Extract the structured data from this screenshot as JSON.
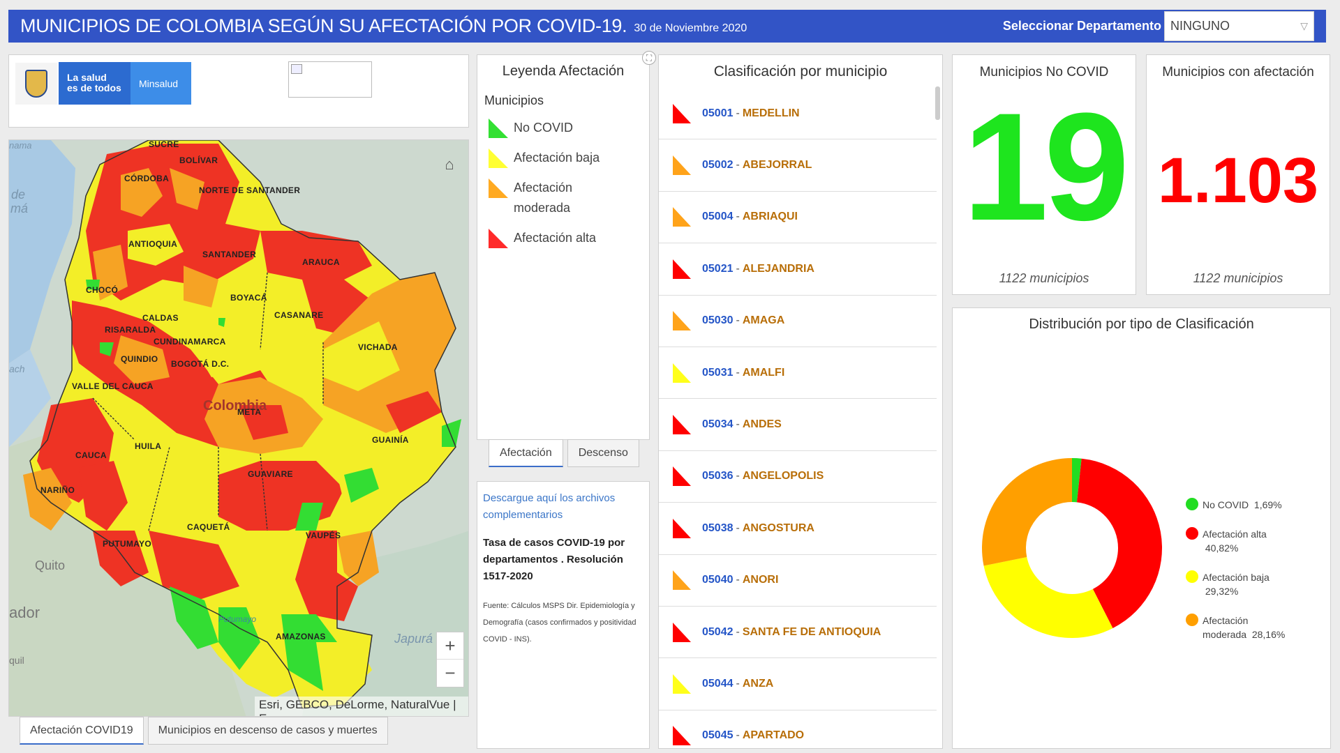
{
  "header": {
    "title": "MUNICIPIOS DE COLOMBIA SEGÚN SU AFECTACIÓN POR COVID-19.",
    "date": "30 de Noviembre 2020",
    "dept_label": "Seleccionar Departamento",
    "dept_value": "NINGUNO"
  },
  "logos": {
    "minsalud_slogan_1": "La salud",
    "minsalud_slogan_2": "es de todos",
    "minsalud_name": "Minsalud"
  },
  "map": {
    "attribution": "Esri, GEBCO, DeLorme, NaturalVue | E...",
    "labels": [
      {
        "id": "sucre",
        "text": "SUCRE"
      },
      {
        "id": "bolivar",
        "text": "BOLÍVAR"
      },
      {
        "id": "cordoba",
        "text": "CÓRDOBA"
      },
      {
        "id": "norte-santander",
        "text": "NORTE DE SANTANDER"
      },
      {
        "id": "antioquia",
        "text": "ANTIOQUIA"
      },
      {
        "id": "santander",
        "text": "SANTANDER"
      },
      {
        "id": "arauca",
        "text": "ARAUCA"
      },
      {
        "id": "choco",
        "text": "CHOCÓ"
      },
      {
        "id": "boyaca",
        "text": "BOYACÁ"
      },
      {
        "id": "caldas",
        "text": "CALDAS"
      },
      {
        "id": "casanare",
        "text": "CASANARE"
      },
      {
        "id": "risaralda",
        "text": "RISARALDA"
      },
      {
        "id": "cundinamarca",
        "text": "CUNDINAMARCA"
      },
      {
        "id": "vichada",
        "text": "VICHADA"
      },
      {
        "id": "quindio",
        "text": "QUINDIO"
      },
      {
        "id": "bogota",
        "text": "BOGOTÁ D.C."
      },
      {
        "id": "valle",
        "text": "VALLE DEL CAUCA"
      },
      {
        "id": "meta",
        "text": "META"
      },
      {
        "id": "guainia",
        "text": "GUAINÍA"
      },
      {
        "id": "huila",
        "text": "HUILA"
      },
      {
        "id": "cauca",
        "text": "CAUCA"
      },
      {
        "id": "guaviare",
        "text": "GUAVIARE"
      },
      {
        "id": "narino",
        "text": "NARIÑO"
      },
      {
        "id": "caqueta",
        "text": "CAQUETÁ"
      },
      {
        "id": "vaupes",
        "text": "VAUPÉS"
      },
      {
        "id": "putumayo",
        "text": "PUTUMAYO"
      },
      {
        "id": "amazonas",
        "text": "AMAZONAS"
      }
    ],
    "country_label": "Colombia",
    "other_labels": {
      "quito": "Quito",
      "ador": "ador",
      "japura": "Japurá",
      "de": "de",
      "ma": "má",
      "nama": "nama",
      "quil": "quil",
      "ach": "ach",
      "putumayo_river": "Putumayo"
    }
  },
  "bottom_tabs": [
    {
      "label": "Afectación COVID19",
      "active": true
    },
    {
      "label": "Municipios en descenso de casos y muertes",
      "active": false
    }
  ],
  "legend": {
    "title": "Leyenda Afectación",
    "subtitle": "Municipios",
    "items": [
      {
        "label": "No COVID",
        "color": "#33e033"
      },
      {
        "label": "Afectación baja",
        "color": "#ffff33"
      },
      {
        "label": "Afectación moderada",
        "color": "#ffaa22"
      },
      {
        "label": "Afectación alta",
        "color": "#ff2a2a"
      }
    ],
    "tabs": [
      {
        "label": "Afectación",
        "active": true
      },
      {
        "label": "Descenso",
        "active": false
      }
    ]
  },
  "info": {
    "link": "Descargue aquí los archivos complementarios",
    "text": "Tasa de casos COVID-19 por departamentos . Resolución 1517-2020",
    "source": "Fuente: Cálculos MSPS Dir. Epidemiología y Demografía (casos confirmados y positividad COVID - INS)."
  },
  "list": {
    "title": "Clasificación por municipio",
    "rows": [
      {
        "code": "05001",
        "name": "MEDELLIN",
        "color": "#ff0000"
      },
      {
        "code": "05002",
        "name": "ABEJORRAL",
        "color": "#ffa31a"
      },
      {
        "code": "05004",
        "name": "ABRIAQUI",
        "color": "#ffa31a"
      },
      {
        "code": "05021",
        "name": "ALEJANDRIA",
        "color": "#ff0000"
      },
      {
        "code": "05030",
        "name": "AMAGA",
        "color": "#ffa31a"
      },
      {
        "code": "05031",
        "name": "AMALFI",
        "color": "#ffff1a"
      },
      {
        "code": "05034",
        "name": "ANDES",
        "color": "#ff0000"
      },
      {
        "code": "05036",
        "name": "ANGELOPOLIS",
        "color": "#ff0000"
      },
      {
        "code": "05038",
        "name": "ANGOSTURA",
        "color": "#ff0000"
      },
      {
        "code": "05040",
        "name": "ANORI",
        "color": "#ffa31a"
      },
      {
        "code": "05042",
        "name": "SANTA FE DE ANTIOQUIA",
        "color": "#ff0000"
      },
      {
        "code": "05044",
        "name": "ANZA",
        "color": "#ffff1a"
      },
      {
        "code": "05045",
        "name": "APARTADO",
        "color": "#ff0000"
      }
    ]
  },
  "kpis": {
    "no_covid": {
      "title": "Municipios No COVID",
      "value": "19",
      "sub": "1122 municipios"
    },
    "afectacion": {
      "title": "Municipios con afectación",
      "value": "1.103",
      "sub": "1122 municipios"
    }
  },
  "distribution": {
    "title": "Distribución por tipo de Clasificación",
    "items": [
      {
        "label": "No COVID",
        "pct_label": "1,69%",
        "value": 1.69,
        "color": "#22dd22"
      },
      {
        "label": "Afectación alta",
        "pct_label": "40,82%",
        "value": 40.82,
        "color": "#ff0000"
      },
      {
        "label": "Afectación baja",
        "pct_label": "29,32%",
        "value": 29.32,
        "color": "#ffff00"
      },
      {
        "label": "Afectación moderada",
        "pct_label": "28,16%",
        "value": 28.16,
        "color": "#ff9f00"
      }
    ]
  }
}
